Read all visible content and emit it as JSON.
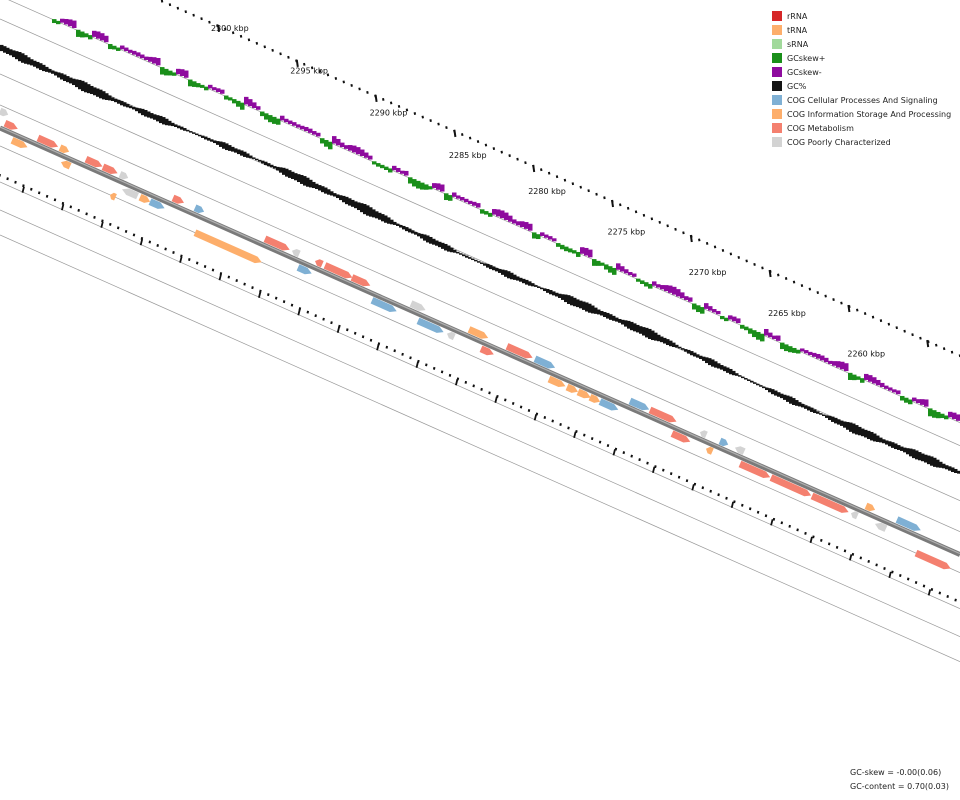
{
  "legend": [
    {
      "label": "rRNA",
      "color": "#d62728"
    },
    {
      "label": "tRNA",
      "color": "#fdae6b"
    },
    {
      "label": "sRNA",
      "color": "#a1d99b"
    },
    {
      "label": "GCskew+",
      "color": "#1a8f1a"
    },
    {
      "label": "GCskew-",
      "color": "#8e0b9e"
    },
    {
      "label": "GC%",
      "color": "#141414"
    },
    {
      "label": "COG Cellular Processes And Signaling",
      "color": "#7fb0d4"
    },
    {
      "label": "COG Information Storage And Processing",
      "color": "#fdae6b"
    },
    {
      "label": "COG Metabolism",
      "color": "#f4806f"
    },
    {
      "label": "COG Poorly Characterized",
      "color": "#d3d3d3"
    }
  ],
  "tick_labels": [
    {
      "text": "2300 kbp",
      "kbp": 2300
    },
    {
      "text": "2295 kbp",
      "kbp": 2295
    },
    {
      "text": "2290 kbp",
      "kbp": 2290
    },
    {
      "text": "2285 kbp",
      "kbp": 2285
    },
    {
      "text": "2280 kbp",
      "kbp": 2280
    },
    {
      "text": "2275 kbp",
      "kbp": 2275
    },
    {
      "text": "2270 kbp",
      "kbp": 2270
    },
    {
      "text": "2265 kbp",
      "kbp": 2265
    },
    {
      "text": "2260 kbp",
      "kbp": 2260
    }
  ],
  "stats": {
    "gc_skew": "GC-skew = -0.00(0.06)",
    "gc_content": "GC-content = 0.70(0.03)"
  }
}
